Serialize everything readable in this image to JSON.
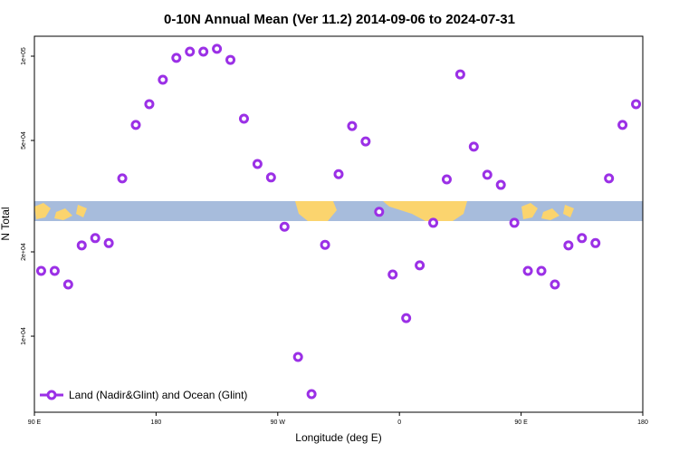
{
  "chart_data": {
    "type": "scatter",
    "title": "0-10N Annual Mean (Ver 11.2)   2014-09-06 to 2024-07-31",
    "x_label": "Longitude (deg E)",
    "y_label": "N Total",
    "log_y": true,
    "legend": "lower left",
    "xlim": [
      90,
      540
    ],
    "ylim": [
      5350,
      117800
    ],
    "xticks": [
      {
        "value": 90,
        "label": "90 E"
      },
      {
        "value": 180,
        "label": "180"
      },
      {
        "value": 270,
        "label": "90 W"
      },
      {
        "value": 360,
        "label": "0"
      },
      {
        "value": 450,
        "label": "90 E"
      },
      {
        "value": 540,
        "label": "180"
      }
    ],
    "yticks": [
      {
        "value": 10000,
        "label": "1e+04"
      },
      {
        "value": 20000,
        "label": "2e+04"
      },
      {
        "value": 50000,
        "label": "5e+04"
      },
      {
        "value": 100000,
        "label": "1e+05"
      }
    ],
    "series": [
      {
        "name": "Land (Nadir&Glint) and Ocean (Glint)",
        "color": "#9b30e6",
        "x": [
          95,
          105,
          115,
          125,
          135,
          145,
          155,
          165,
          175,
          185,
          195,
          205,
          215,
          225,
          235,
          245,
          255,
          265,
          275,
          285,
          295,
          305,
          315,
          325,
          335,
          345,
          355,
          365,
          375,
          385,
          395,
          405,
          415,
          425,
          435,
          445,
          455,
          465,
          475,
          485,
          495,
          505,
          515,
          525,
          535
        ],
        "values": [
          17100,
          17100,
          15300,
          21100,
          22400,
          21500,
          36600,
          56800,
          67400,
          82400,
          98600,
          103800,
          103800,
          106200,
          97000,
          59800,
          41200,
          36900,
          24600,
          8430,
          6210,
          21200,
          37900,
          56300,
          49600,
          27800,
          16600,
          11600,
          17900,
          25400,
          36300,
          86100,
          47500,
          37700,
          34700,
          25400,
          17100,
          17100,
          15300,
          21100,
          22400,
          21500,
          36600,
          56800,
          67400
        ]
      }
    ]
  }
}
